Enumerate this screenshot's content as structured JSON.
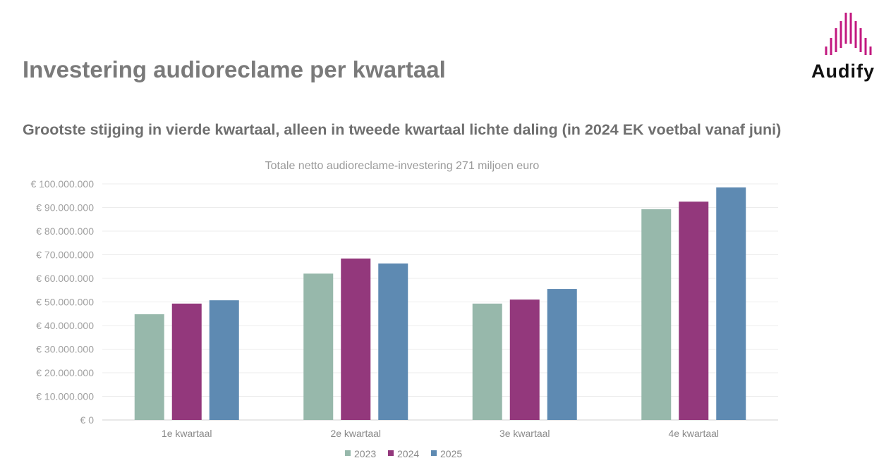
{
  "header": {
    "title": "Investering audioreclame per kwartaal",
    "subtitle": "Grootste stijging in vierde kwartaal, alleen in tweede kwartaal lichte daling (in 2024 EK voetbal vanaf juni)"
  },
  "logo": {
    "text": "Audify",
    "color": "#c2187f"
  },
  "chart_data": {
    "type": "bar",
    "title": "Totale netto audioreclame-investering 271 miljoen euro",
    "categories": [
      "1e kwartaal",
      "2e kwartaal",
      "3e kwartaal",
      "4e kwartaal"
    ],
    "series": [
      {
        "name": "2023",
        "color": "#97b8ab",
        "values": [
          44800000,
          62000000,
          49300000,
          89300000
        ]
      },
      {
        "name": "2024",
        "color": "#93387c",
        "values": [
          49300000,
          68400000,
          51000000,
          92500000
        ]
      },
      {
        "name": "2025",
        "color": "#5e8ab2",
        "values": [
          50700000,
          66300000,
          55500000,
          98500000
        ]
      }
    ],
    "ylim": [
      0,
      100000000
    ],
    "yticks": [
      "€ 0",
      "€ 10.000.000",
      "€ 20.000.000",
      "€ 30.000.000",
      "€ 40.000.000",
      "€ 50.000.000",
      "€ 60.000.000",
      "€ 70.000.000",
      "€ 80.000.000",
      "€ 90.000.000",
      "€ 100.000.000"
    ],
    "legend": "bottom",
    "grid": true
  }
}
